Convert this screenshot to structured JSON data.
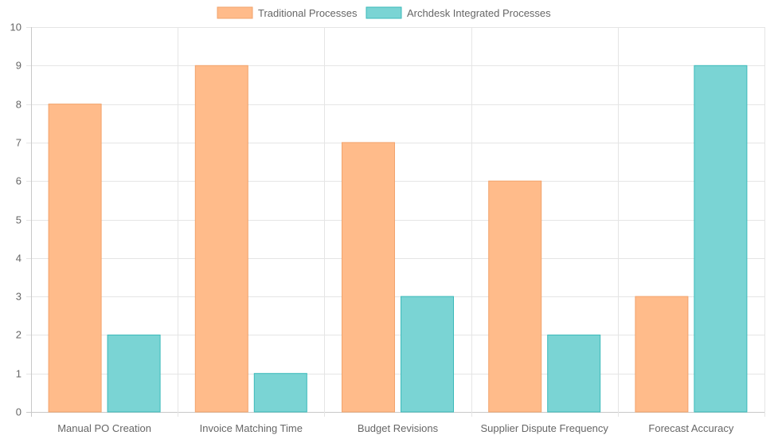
{
  "chart_data": {
    "type": "bar",
    "categories": [
      "Manual PO Creation",
      "Invoice Matching Time",
      "Budget Revisions",
      "Supplier Dispute Frequency",
      "Forecast Accuracy"
    ],
    "series": [
      {
        "name": "Traditional Processes",
        "values": [
          8,
          9,
          7,
          6,
          3
        ],
        "fill": "#FFBB8A",
        "stroke": "#F2A36C"
      },
      {
        "name": "Archdesk Integrated Processes",
        "values": [
          2,
          1,
          3,
          2,
          9
        ],
        "fill": "#7AD4D4",
        "stroke": "#3BBABA"
      }
    ],
    "ylim": [
      0,
      10
    ],
    "yticks": [
      "0",
      "1",
      "2",
      "3",
      "4",
      "5",
      "6",
      "7",
      "8",
      "9",
      "10"
    ],
    "legend": "top-center",
    "grid": true
  }
}
